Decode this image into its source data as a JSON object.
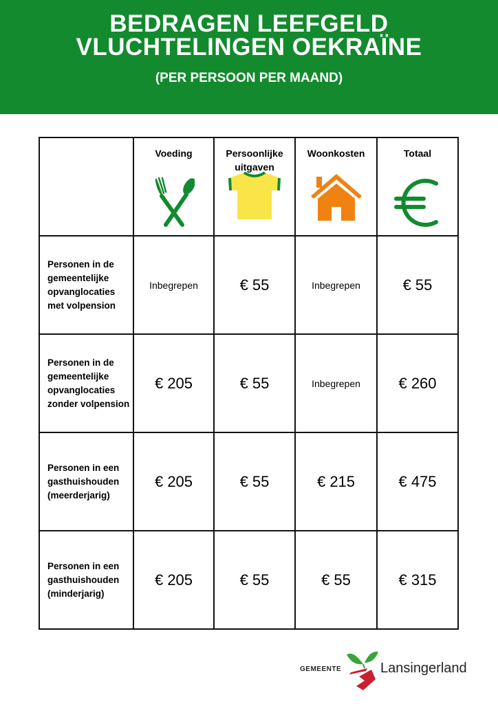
{
  "header": {
    "title_line1": "BEDRAGEN LEEFGELD",
    "title_line2": "VLUCHTELINGEN OEKRAÏNE",
    "subtitle": "(PER PERSOON PER MAAND)",
    "color": "#138a2e"
  },
  "table": {
    "columns": [
      {
        "label": "Voeding",
        "icon": "fork-spoon-icon"
      },
      {
        "label": "Persoonlijke uitgaven",
        "icon": "tshirt-icon"
      },
      {
        "label": "Woonkosten",
        "icon": "house-icon"
      },
      {
        "label": "Totaal",
        "icon": "euro-icon"
      }
    ],
    "rows": [
      {
        "label": "Personen in de gemeentelijke opvanglocaties met volpension",
        "cells": [
          "Inbegrepen",
          "€ 55",
          "Inbegrepen",
          "€ 55"
        ]
      },
      {
        "label": "Personen in de gemeentelijke opvanglocaties zonder volpension",
        "cells": [
          "€ 205",
          "€ 55",
          "Inbegrepen",
          "€ 260"
        ]
      },
      {
        "label": "Personen in een gasthuishouden (meerderjarig)",
        "cells": [
          "€ 205",
          "€ 55",
          "€ 215",
          "€ 475"
        ]
      },
      {
        "label": "Personen in een gasthuishouden (minderjarig)",
        "cells": [
          "€ 205",
          "€ 55",
          "€ 55",
          "€ 315"
        ]
      }
    ]
  },
  "logo": {
    "prefix": "GEMEENTE",
    "name": "Lansingerland"
  }
}
